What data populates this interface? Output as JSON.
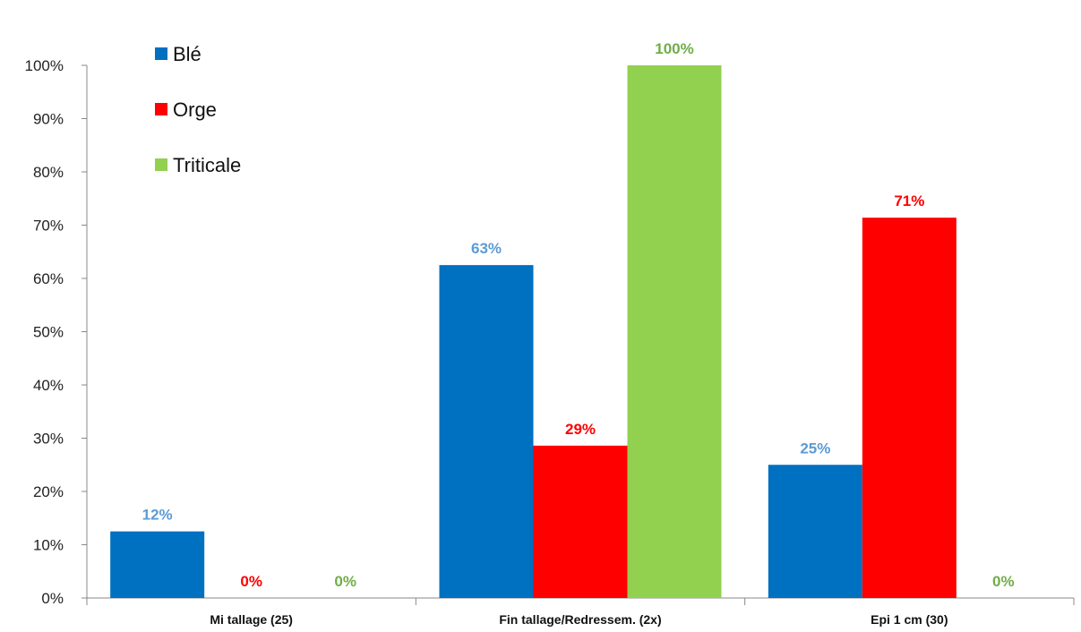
{
  "chart_data": {
    "type": "bar",
    "title": "",
    "xlabel": "",
    "ylabel": "",
    "ylim": [
      0,
      100
    ],
    "y_ticks": [
      0,
      10,
      20,
      30,
      40,
      50,
      60,
      70,
      80,
      90,
      100
    ],
    "y_tick_labels": [
      "0%",
      "10%",
      "20%",
      "30%",
      "40%",
      "50%",
      "60%",
      "70%",
      "80%",
      "90%",
      "100%"
    ],
    "categories": [
      "Mi tallage (25)",
      "Fin tallage/Redressem. (2x)",
      "Epi 1 cm (30)"
    ],
    "series": [
      {
        "name": "Blé",
        "color": "#0070C0",
        "label_color": "#5B9BD5",
        "values": [
          12.5,
          62.5,
          25
        ],
        "labels": [
          "12%",
          "63%",
          "25%"
        ]
      },
      {
        "name": "Orge",
        "color": "#FF0000",
        "label_color": "#FF0000",
        "values": [
          0,
          28.6,
          71.4
        ],
        "labels": [
          "0%",
          "29%",
          "71%"
        ]
      },
      {
        "name": "Triticale",
        "color": "#92D050",
        "label_color": "#70AD47",
        "values": [
          0,
          100,
          0
        ],
        "labels": [
          "0%",
          "100%",
          "0%"
        ]
      }
    ],
    "legend_position": "top-left",
    "grid": false
  }
}
